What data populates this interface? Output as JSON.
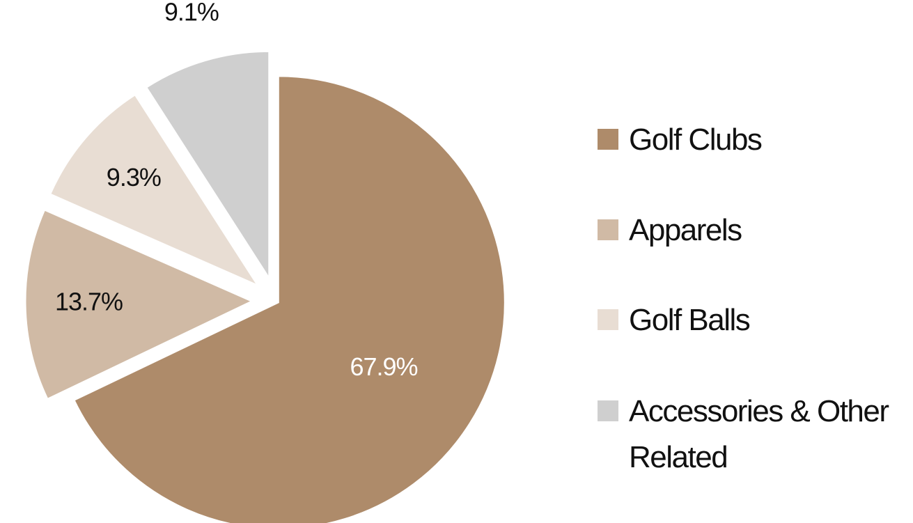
{
  "chart_data": {
    "type": "pie",
    "exploded": true,
    "slices": [
      {
        "label": "Golf Clubs",
        "value": 67.9,
        "value_label": "67.9%",
        "color": "#AE8B6A",
        "label_color": "#FFFFFF"
      },
      {
        "label": "Apparels",
        "value": 13.7,
        "value_label": "13.7%",
        "color": "#D0BAA5",
        "label_color": "#111111"
      },
      {
        "label": "Golf Balls",
        "value": 9.3,
        "value_label": "9.3%",
        "color": "#E8DDD3",
        "label_color": "#111111"
      },
      {
        "label": "Accessories & Other Related",
        "label_lines": [
          "Accessories & Other",
          "Related"
        ],
        "value": 9.1,
        "value_label": "9.1%",
        "color": "#CFCFCF",
        "label_color": "#111111"
      }
    ],
    "legend_position": "right",
    "title": ""
  }
}
